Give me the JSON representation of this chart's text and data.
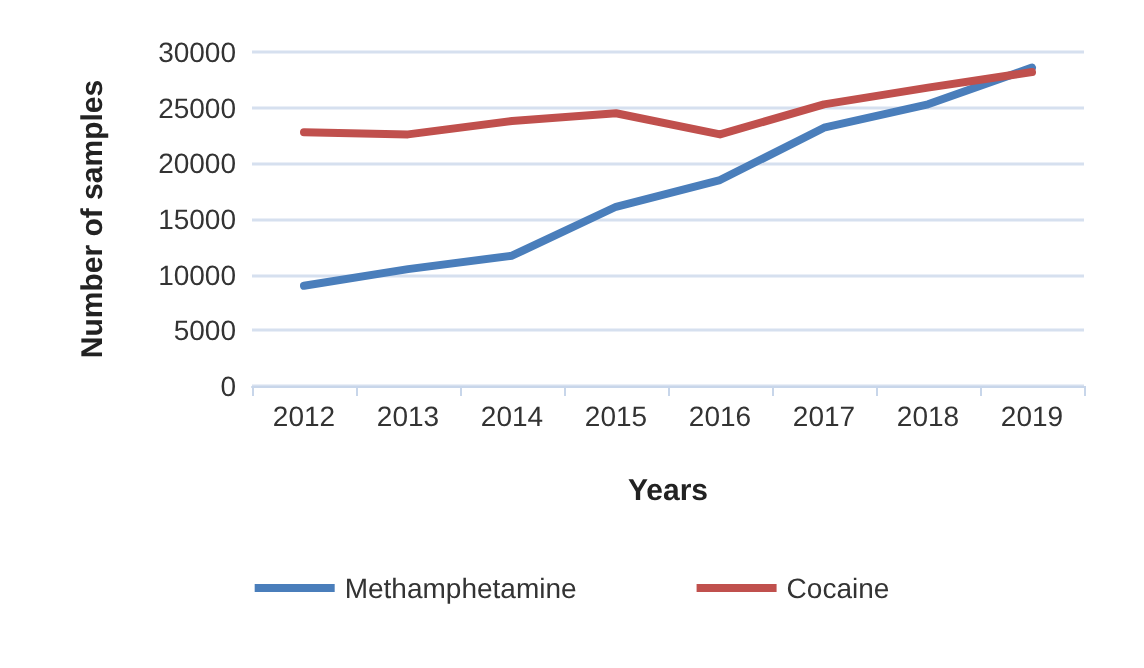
{
  "chart_data": {
    "type": "line",
    "xlabel": "Years",
    "ylabel": "Number of samples",
    "categories": [
      "2012",
      "2013",
      "2014",
      "2015",
      "2016",
      "2017",
      "2018",
      "2019"
    ],
    "series": [
      {
        "name": "Methamphetamine",
        "color": "#4a7ebb",
        "values": [
          9000,
          10500,
          11700,
          16100,
          18500,
          23200,
          25300,
          28600
        ]
      },
      {
        "name": "Cocaine",
        "color": "#c0504d",
        "values": [
          22800,
          22600,
          23800,
          24500,
          22600,
          25300,
          26800,
          28200
        ]
      }
    ],
    "ylim": [
      0,
      30000
    ],
    "yticks": [
      0,
      5000,
      10000,
      15000,
      20000,
      25000,
      30000
    ],
    "grid": "y",
    "legend": "bottom",
    "marker": "none",
    "line_style": "solid"
  }
}
